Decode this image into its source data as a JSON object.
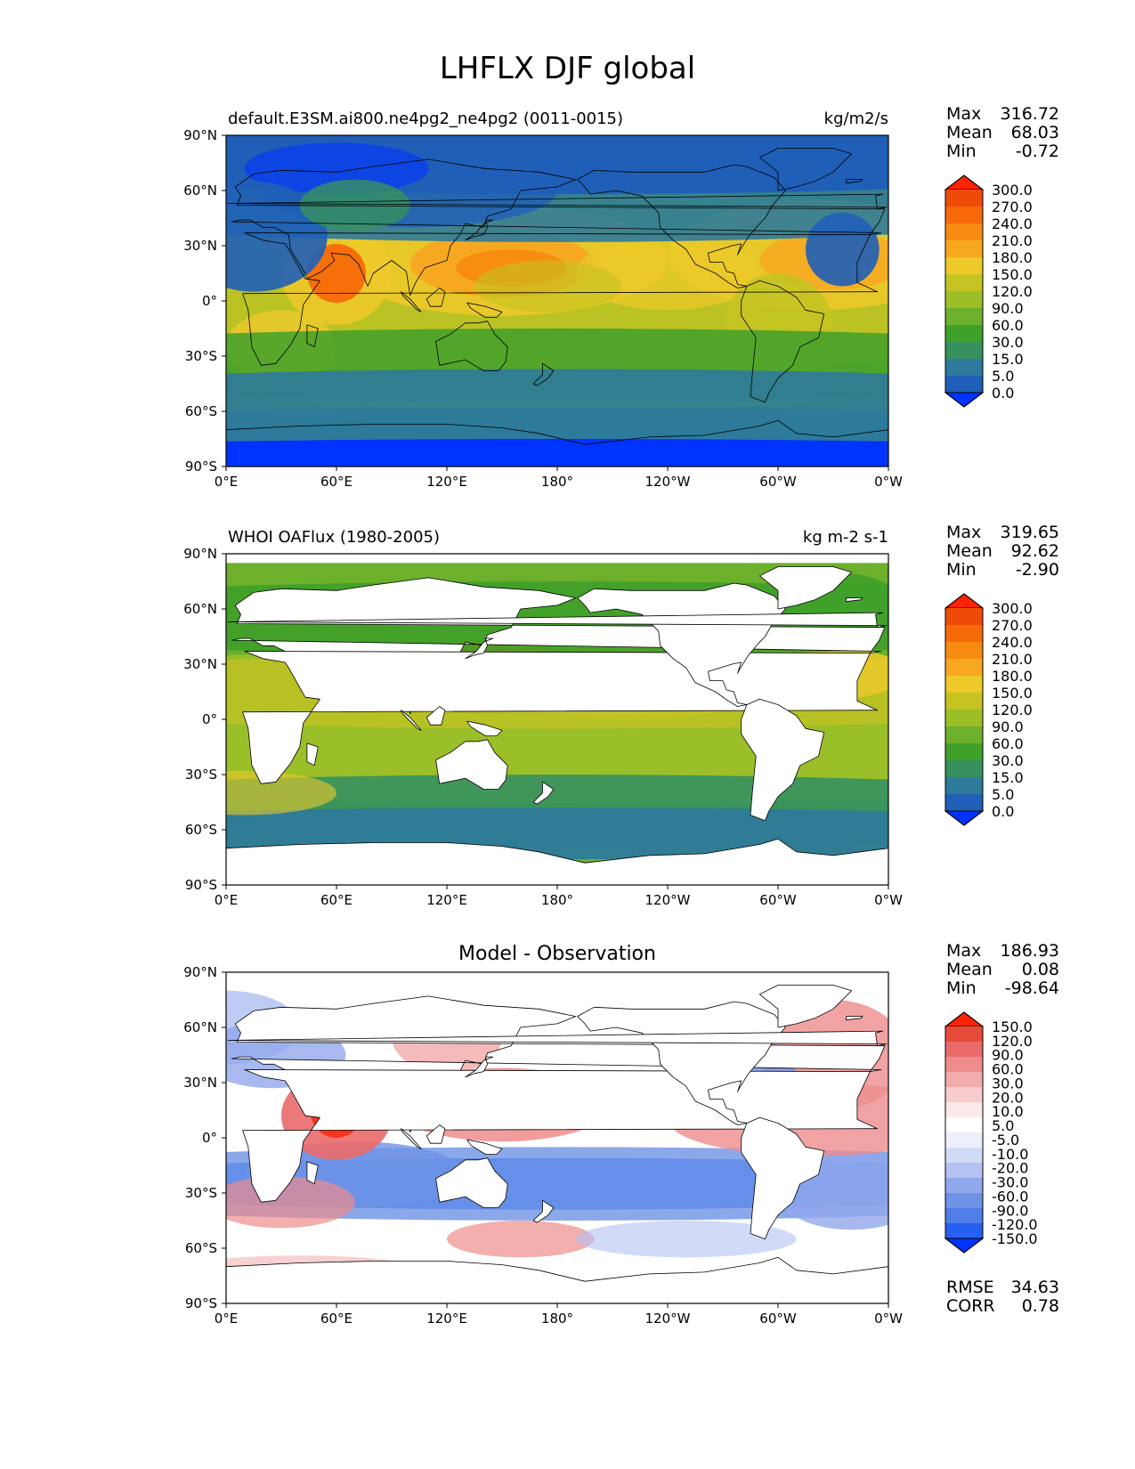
{
  "figure": {
    "title": "LHFLX DJF global",
    "lat_ticks": [
      "90°N",
      "60°N",
      "30°N",
      "0°",
      "30°S",
      "60°S",
      "90°S"
    ],
    "lon_ticks": [
      "0°E",
      "60°E",
      "120°E",
      "180°",
      "120°W",
      "60°W",
      "0°W"
    ]
  },
  "panels": [
    {
      "id": "model",
      "left_title": "default.E3SM.ai800.ne4pg2_ne4pg2 (0011-0015)",
      "right_title": "kg/m2/s",
      "center_title": "",
      "stats": [
        {
          "label": "Max",
          "value": "316.72"
        },
        {
          "label": "Mean",
          "value": "68.03"
        },
        {
          "label": "Min",
          "value": "-0.72"
        }
      ],
      "colorbar_ticks": [
        "300.0",
        "270.0",
        "240.0",
        "210.0",
        "180.0",
        "150.0",
        "120.0",
        "90.0",
        "60.0",
        "30.0",
        "15.0",
        "5.0",
        "0.0"
      ],
      "extra_stats": []
    },
    {
      "id": "observation",
      "left_title": "WHOI OAFlux (1980-2005)",
      "right_title": "kg m-2 s-1",
      "center_title": "",
      "stats": [
        {
          "label": "Max",
          "value": "319.65"
        },
        {
          "label": "Mean",
          "value": "92.62"
        },
        {
          "label": "Min",
          "value": "-2.90"
        }
      ],
      "colorbar_ticks": [
        "300.0",
        "270.0",
        "240.0",
        "210.0",
        "180.0",
        "150.0",
        "120.0",
        "90.0",
        "60.0",
        "30.0",
        "15.0",
        "5.0",
        "0.0"
      ],
      "extra_stats": []
    },
    {
      "id": "difference",
      "left_title": "",
      "right_title": "",
      "center_title": "Model - Observation",
      "stats": [
        {
          "label": "Max",
          "value": "186.93"
        },
        {
          "label": "Mean",
          "value": "0.08"
        },
        {
          "label": "Min",
          "value": "-98.64"
        }
      ],
      "colorbar_ticks": [
        "150.0",
        "120.0",
        "90.0",
        "60.0",
        "30.0",
        "20.0",
        "10.0",
        "5.0",
        "-5.0",
        "-10.0",
        "-20.0",
        "-30.0",
        "-60.0",
        "-90.0",
        "-120.0",
        "-150.0"
      ],
      "extra_stats": [
        {
          "label": "RMSE",
          "value": "34.63"
        },
        {
          "label": "CORR",
          "value": "0.78"
        }
      ]
    }
  ],
  "colors": {
    "sequential": [
      "#0033ff",
      "#1f5fb8",
      "#2d7a9a",
      "#36915f",
      "#3fa02a",
      "#6cb02c",
      "#9cbf28",
      "#c4c322",
      "#edc92a",
      "#f7a820",
      "#f78a10",
      "#f76a0a",
      "#f04a08",
      "#ff2200"
    ],
    "diverging": [
      "#0033ff",
      "#2660f0",
      "#4f7ee8",
      "#6e92e6",
      "#92a8ec",
      "#b3c2f2",
      "#d3dcf7",
      "#edf0fb",
      "#ffffff",
      "#fbe8e8",
      "#f6cccc",
      "#f2acac",
      "#ee8c8c",
      "#ea6a6a",
      "#e84a3a",
      "#ff2200"
    ],
    "land_mask": "#ffffff",
    "coastline": "#000000"
  }
}
